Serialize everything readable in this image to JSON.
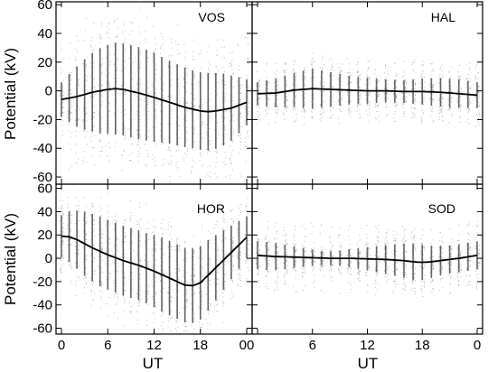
{
  "chart_data": {
    "type": "scatter",
    "ylabel": "Potential (kV)",
    "xlabel": "UT",
    "ylim": [
      -65,
      62
    ],
    "yticks": [
      "60",
      "40",
      "20",
      "0",
      "-20",
      "-40",
      "-60"
    ],
    "xticks_left": [
      "0",
      "6",
      "12",
      "18",
      "00"
    ],
    "xticks_right": [
      "",
      "6",
      "12",
      "18",
      "0"
    ],
    "x_range_hours": [
      0,
      24
    ],
    "grid": false,
    "panels": [
      {
        "station": "VOS",
        "mean_curve": {
          "x": [
            0,
            2,
            4,
            6,
            7,
            8,
            10,
            12,
            14,
            16,
            18,
            19,
            20,
            22,
            24
          ],
          "y": [
            -6,
            -4,
            -1,
            1,
            1.5,
            1,
            -1.5,
            -4.5,
            -8,
            -11.5,
            -14,
            -14.5,
            -14,
            -12,
            -8
          ]
        },
        "spread_halfwidth_kv": [
          12,
          20,
          26,
          30,
          32,
          32,
          32,
          31,
          29,
          28,
          27,
          27,
          26,
          22,
          16
        ],
        "outlier_extent_kv": 50
      },
      {
        "station": "HAL",
        "mean_curve": {
          "x": [
            0,
            2,
            4,
            6,
            8,
            10,
            12,
            14,
            16,
            18,
            20,
            22,
            24
          ],
          "y": [
            -2,
            -1.5,
            0.5,
            1.5,
            1,
            0.5,
            0,
            0,
            -0.5,
            -0.5,
            -1,
            -2,
            -3
          ]
        },
        "spread_halfwidth_kv": [
          8,
          10,
          12,
          14,
          12,
          10,
          9,
          8,
          8,
          9,
          10,
          10,
          9
        ],
        "outlier_extent_kv": 22
      },
      {
        "station": "HOR",
        "mean_curve": {
          "x": [
            0,
            1,
            2,
            4,
            6,
            8,
            10,
            12,
            14,
            15,
            16,
            17,
            18,
            20,
            22,
            24
          ],
          "y": [
            19,
            18.5,
            16,
            9,
            3,
            -2,
            -6,
            -11,
            -17,
            -20,
            -23,
            -23.5,
            -21,
            -8,
            5,
            18
          ]
        },
        "spread_halfwidth_kv": [
          18,
          24,
          28,
          30,
          30,
          30,
          30,
          30,
          32,
          32,
          32,
          32,
          30,
          26,
          22,
          18
        ],
        "outlier_extent_kv": 40
      },
      {
        "station": "SOD",
        "mean_curve": {
          "x": [
            0,
            2,
            4,
            6,
            8,
            10,
            12,
            14,
            16,
            17,
            18,
            19,
            20,
            22,
            24
          ],
          "y": [
            2.5,
            1.5,
            1,
            0.5,
            0,
            0,
            -0.5,
            -1,
            -2,
            -3,
            -3.5,
            -3,
            -2,
            0,
            2.5
          ]
        },
        "spread_halfwidth_kv": [
          12,
          12,
          10,
          8,
          6,
          6,
          8,
          10,
          12,
          14,
          16,
          14,
          12,
          12,
          12
        ],
        "outlier_extent_kv": 30
      }
    ]
  }
}
